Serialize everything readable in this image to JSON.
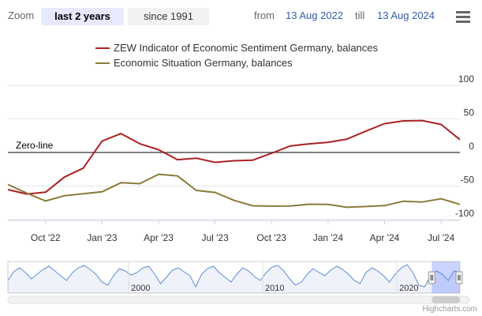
{
  "toolbar": {
    "zoom_label": "Zoom",
    "zoom_active": "last 2 years",
    "zoom_other": "since 1991",
    "from_label": "from",
    "from_date": "13 Aug 2022",
    "till_label": "till",
    "till_date": "13 Aug 2024",
    "menu_icon": "hamburger-menu-icon"
  },
  "chart_data": {
    "type": "line",
    "title": "",
    "xlabel": "",
    "ylabel": "",
    "ylim": [
      -100,
      100
    ],
    "y_ticks": [
      "100",
      "50",
      "0",
      "-50",
      "-100"
    ],
    "y_tick_values": [
      100,
      50,
      0,
      -50,
      -100
    ],
    "x_ticks": [
      "Oct '22",
      "Jan '23",
      "Apr '23",
      "Jul '23",
      "Oct '23",
      "Jan '24",
      "Apr '24",
      "Jul '24"
    ],
    "zero_line_label": "Zero-line",
    "x": [
      "Aug 2022",
      "Sep 2022",
      "Oct 2022",
      "Nov 2022",
      "Dec 2022",
      "Jan 2023",
      "Feb 2023",
      "Mar 2023",
      "Apr 2023",
      "May 2023",
      "Jun 2023",
      "Jul 2023",
      "Aug 2023",
      "Sep 2023",
      "Oct 2023",
      "Nov 2023",
      "Dec 2023",
      "Jan 2024",
      "Feb 2024",
      "Mar 2024",
      "Apr 2024",
      "May 2024",
      "Jun 2024",
      "Jul 2024",
      "Aug 2024"
    ],
    "series": [
      {
        "name": "ZEW Indicator of Economic Sentiment Germany, balances",
        "color": "#aa2222",
        "values": [
          -55.3,
          -61.9,
          -59.2,
          -36.7,
          -23.3,
          16.9,
          28.1,
          13.0,
          4.1,
          -10.7,
          -8.5,
          -14.7,
          -12.3,
          -11.4,
          -1.1,
          9.8,
          12.8,
          15.2,
          19.9,
          31.7,
          42.9,
          47.1,
          47.5,
          41.8,
          19.2
        ]
      },
      {
        "name": "Economic Situation Germany, balances",
        "color": "#8b7a3a",
        "values": [
          -47.6,
          -60.5,
          -72.2,
          -64.5,
          -61.4,
          -58.6,
          -45.1,
          -46.5,
          -32.5,
          -34.8,
          -56.5,
          -59.5,
          -71.3,
          -79.4,
          -79.9,
          -79.8,
          -77.1,
          -77.3,
          -81.7,
          -80.5,
          -79.2,
          -72.6,
          -73.8,
          -68.9,
          -77.3
        ]
      }
    ],
    "navigator": {
      "labels": [
        "2000",
        "2010",
        "2020"
      ],
      "label_years": [
        2000,
        2010,
        2020
      ],
      "start_year": 1991,
      "end_year": 2024.7,
      "series_values": [
        -20,
        35,
        60,
        30,
        -10,
        20,
        50,
        70,
        40,
        10,
        -20,
        30,
        60,
        75,
        50,
        20,
        -30,
        -50,
        10,
        55,
        40,
        15,
        30,
        60,
        70,
        20,
        -40,
        0,
        45,
        60,
        35,
        10,
        -60,
        20,
        55,
        70,
        30,
        0,
        -30,
        20,
        60,
        40,
        5,
        -20,
        30,
        65,
        75,
        40,
        -10,
        -50,
        -30,
        20,
        55,
        30,
        10,
        45,
        70,
        50,
        20,
        -20,
        -40,
        30,
        60,
        40,
        10,
        -30,
        20,
        60,
        80,
        30,
        -50,
        -60,
        10,
        40,
        20,
        -20,
        40,
        30
      ],
      "selection_start_year": 2022.6,
      "selection_end_year": 2024.7
    },
    "credits": "Highcharts.com"
  }
}
